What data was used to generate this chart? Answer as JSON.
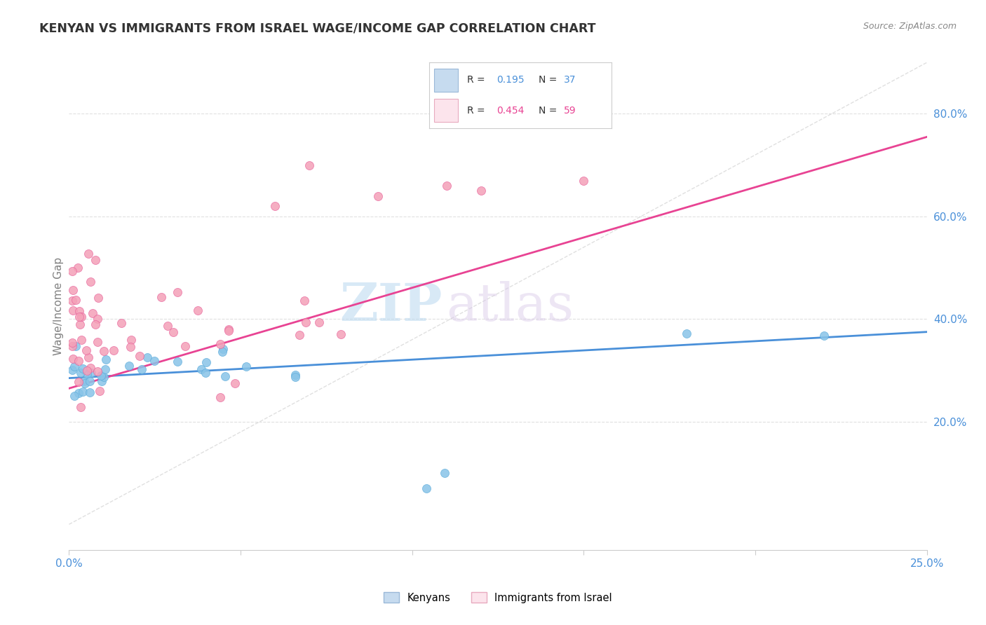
{
  "title": "KENYAN VS IMMIGRANTS FROM ISRAEL WAGE/INCOME GAP CORRELATION CHART",
  "source": "Source: ZipAtlas.com",
  "ylabel": "Wage/Income Gap",
  "right_yticks": [
    "20.0%",
    "40.0%",
    "60.0%",
    "80.0%"
  ],
  "right_ytick_vals": [
    0.2,
    0.4,
    0.6,
    0.8
  ],
  "watermark_zip": "ZIP",
  "watermark_atlas": "atlas",
  "legend_blue_r": "0.195",
  "legend_blue_n": "37",
  "legend_pink_r": "0.454",
  "legend_pink_n": "59",
  "blue_fill": "#c6dbef",
  "pink_fill": "#fce4ec",
  "blue_scatter_color": "#89c4e8",
  "pink_scatter_color": "#f4a0b8",
  "blue_line_color": "#4A90D9",
  "pink_line_color": "#E84393",
  "xlim": [
    0.0,
    0.25
  ],
  "ylim": [
    -0.05,
    0.9
  ],
  "blue_line_x": [
    0.0,
    0.25
  ],
  "blue_line_y": [
    0.285,
    0.375
  ],
  "pink_line_x": [
    0.0,
    0.25
  ],
  "pink_line_y": [
    0.265,
    0.755
  ],
  "dashed_line_x": [
    0.0,
    0.25
  ],
  "dashed_line_y": [
    0.0,
    0.9
  ]
}
